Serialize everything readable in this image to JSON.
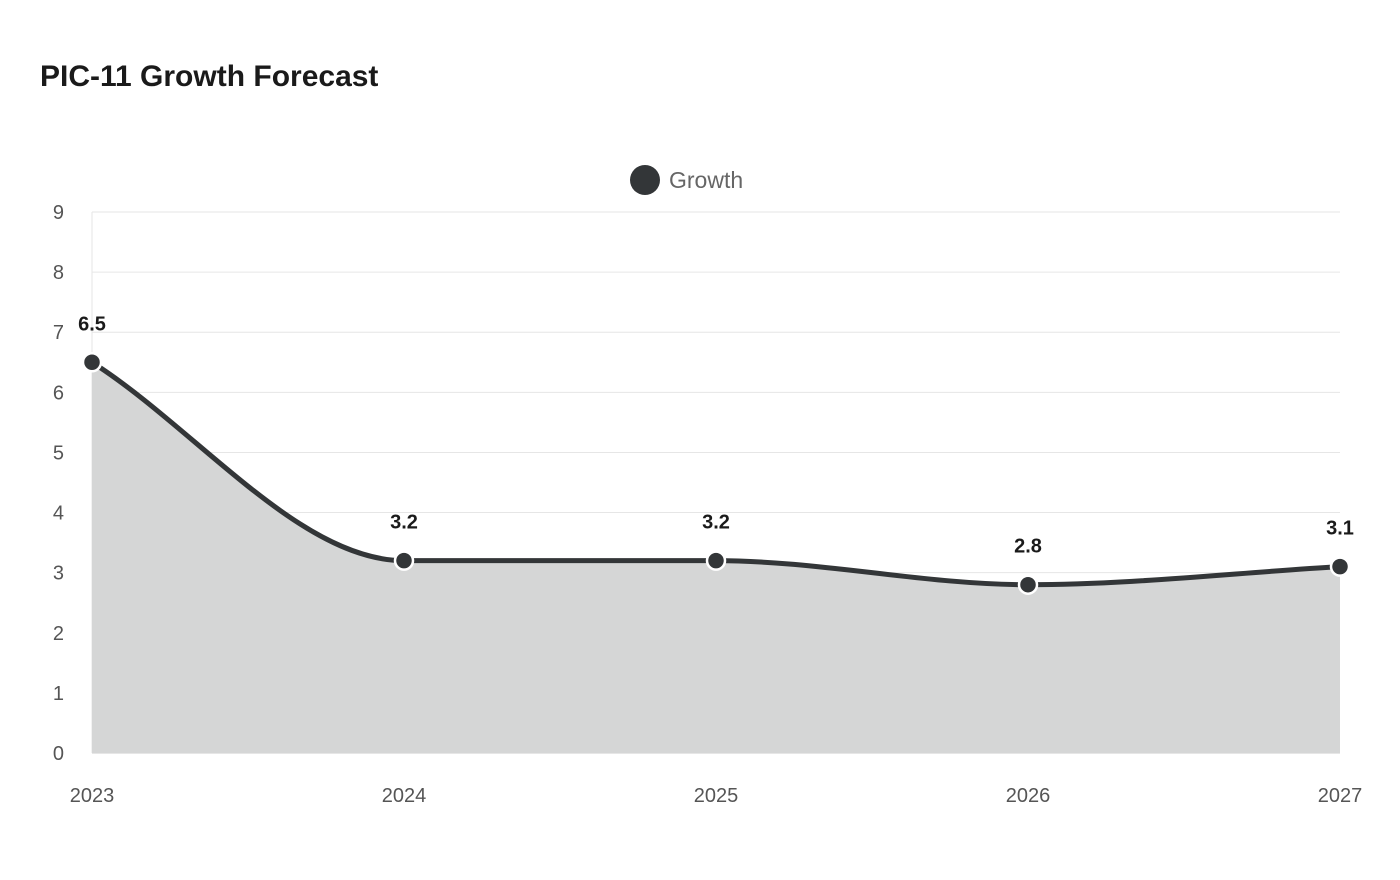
{
  "chart_data": {
    "type": "area",
    "title": "PIC-11 Growth Forecast",
    "categories": [
      "2023",
      "2024",
      "2025",
      "2026",
      "2027"
    ],
    "series": [
      {
        "name": "Growth",
        "values": [
          6.5,
          3.2,
          3.2,
          2.8,
          3.1
        ]
      }
    ],
    "ylim": [
      0,
      9
    ],
    "yticks": [
      0,
      1,
      2,
      3,
      4,
      5,
      6,
      7,
      8,
      9
    ],
    "grid": true,
    "legend_position": "top-center",
    "colors": {
      "line": "#333638",
      "area": "#d5d6d6",
      "grid": "#e6e6e6",
      "axis": "#cccccc",
      "marker_stroke": "#ffffff"
    }
  }
}
